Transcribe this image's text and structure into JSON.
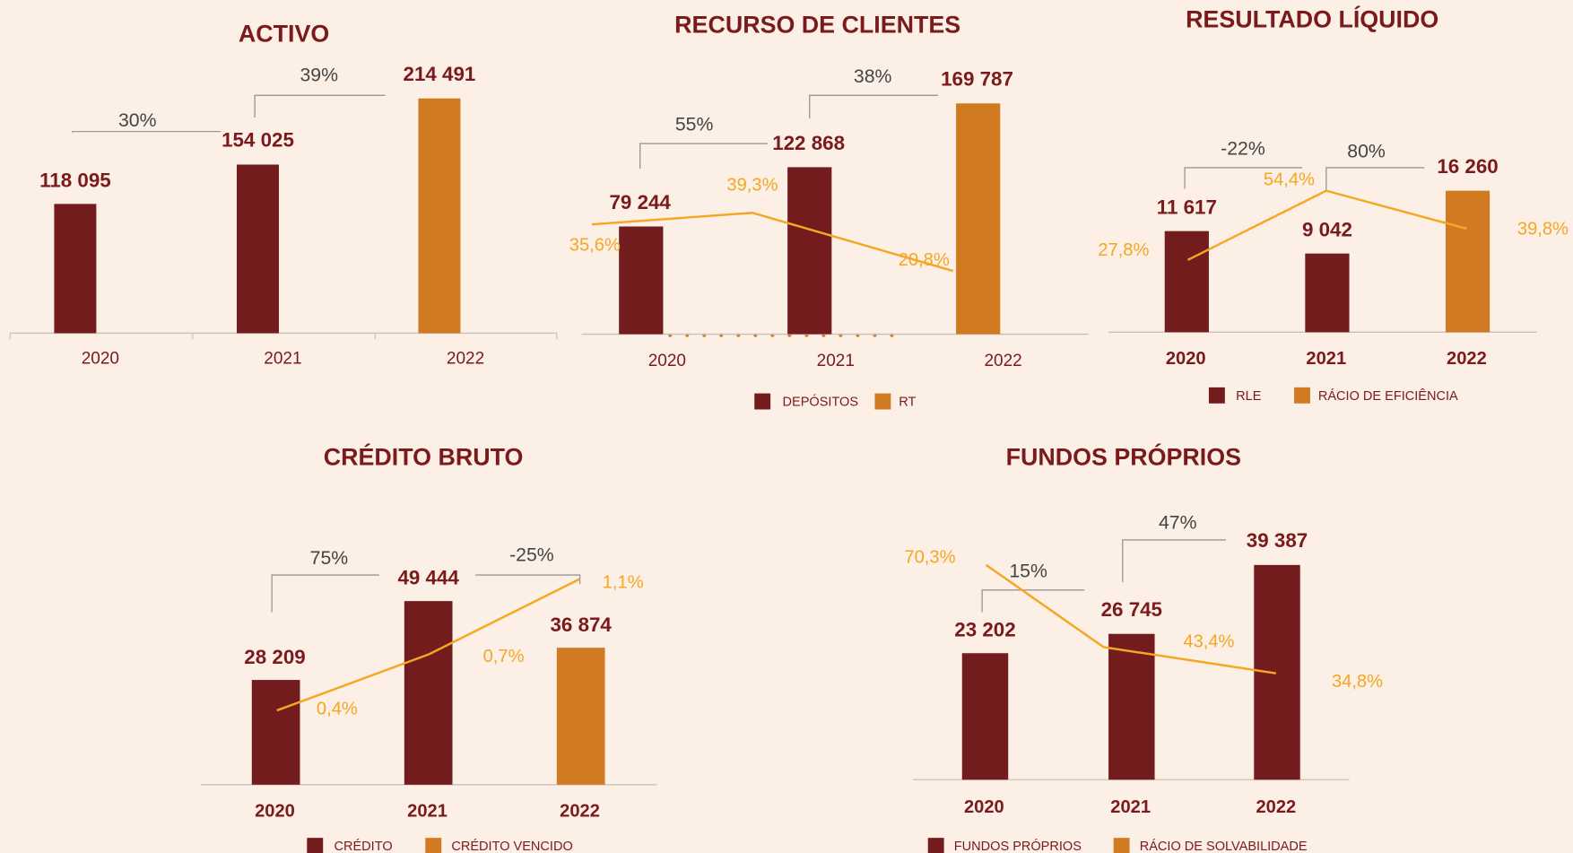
{
  "chart_data": [
    {
      "type": "bar",
      "title": "ACTIVO",
      "categories": [
        "2020",
        "2021",
        "2022"
      ],
      "values": [
        118095,
        154025,
        214491
      ],
      "value_labels": [
        "118 095",
        "154 025",
        "214 491"
      ],
      "colors": [
        "#731c1d",
        "#731c1d",
        "#d07a22"
      ],
      "growth_labels": [
        "30%",
        "39%"
      ]
    },
    {
      "type": "bar",
      "title": "RECURSO DE CLIENTES",
      "categories": [
        "2020",
        "2021",
        "2022"
      ],
      "values": [
        79244,
        122868,
        169787
      ],
      "value_labels": [
        "79 244",
        "122 868",
        "169 787"
      ],
      "colors": [
        "#731c1d",
        "#731c1d",
        "#d07a22"
      ],
      "growth_labels": [
        "55%",
        "38%"
      ],
      "line": {
        "values": [
          35.6,
          39.3,
          20.8
        ],
        "value_labels": [
          "35,6%",
          "39,3%",
          "20,8%"
        ],
        "color": "#f5a623"
      },
      "legend": [
        {
          "name": "DEPÓSITOS",
          "color": "#731c1d"
        },
        {
          "name": "RT",
          "color": "#d07a22"
        }
      ]
    },
    {
      "type": "bar",
      "title": "RESULTADO LÍQUIDO",
      "categories": [
        "2020",
        "2021",
        "2022"
      ],
      "values": [
        11617,
        9042,
        16260
      ],
      "value_labels": [
        "11 617",
        "9 042",
        "16 260"
      ],
      "colors": [
        "#731c1d",
        "#731c1d",
        "#d07a22"
      ],
      "growth_labels": [
        "-22%",
        "80%"
      ],
      "line": {
        "values": [
          27.8,
          54.4,
          39.8
        ],
        "value_labels": [
          "27,8%",
          "54,4%",
          "39,8%"
        ],
        "color": "#f5a623"
      },
      "legend": [
        {
          "name": "RLE",
          "color": "#731c1d"
        },
        {
          "name": "RÁCIO DE EFICIÊNCIA",
          "color": "#d07a22"
        }
      ]
    },
    {
      "type": "bar",
      "title": "CRÉDITO BRUTO",
      "categories": [
        "2020",
        "2021",
        "2022"
      ],
      "values": [
        28209,
        49444,
        36874
      ],
      "value_labels": [
        "28 209",
        "49 444",
        "36 874"
      ],
      "colors": [
        "#731c1d",
        "#731c1d",
        "#d07a22"
      ],
      "growth_labels": [
        "75%",
        "-25%"
      ],
      "line": {
        "values": [
          0.4,
          0.7,
          1.1
        ],
        "value_labels": [
          "0,4%",
          "0,7%",
          "1,1%"
        ],
        "color": "#f5a623"
      },
      "legend": [
        {
          "name": "CRÉDITO",
          "color": "#731c1d"
        },
        {
          "name": "CRÉDITO VENCIDO",
          "color": "#d07a22"
        }
      ]
    },
    {
      "type": "bar",
      "title": "FUNDOS PRÓPRIOS",
      "categories": [
        "2020",
        "2021",
        "2022"
      ],
      "values": [
        23202,
        26745,
        39387
      ],
      "value_labels": [
        "23 202",
        "26 745",
        "39 387"
      ],
      "colors": [
        "#731c1d",
        "#731c1d",
        "#731c1d"
      ],
      "growth_labels": [
        "15%",
        "47%"
      ],
      "line": {
        "values": [
          70.3,
          43.4,
          34.8
        ],
        "value_labels": [
          "70,3%",
          "43,4%",
          "34,8%"
        ],
        "color": "#f5a623"
      },
      "legend": [
        {
          "name": "FUNDOS PRÓPRIOS",
          "color": "#731c1d"
        },
        {
          "name": "RÁCIO DE SOLVABILIDADE",
          "color": "#d07a22"
        }
      ]
    }
  ]
}
